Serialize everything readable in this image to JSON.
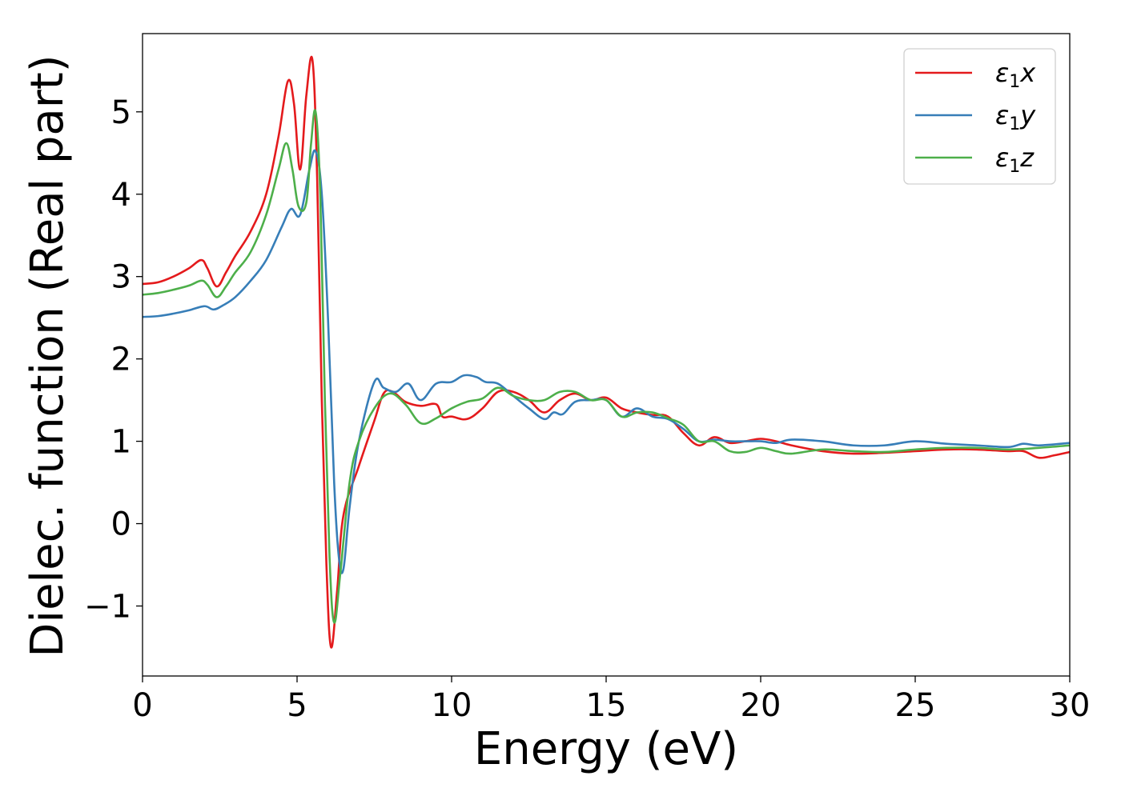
{
  "chart_data": {
    "type": "line",
    "title": "",
    "xlabel": "Energy (eV)",
    "ylabel": "Dielec. function (Real part)",
    "xlim": [
      0,
      30
    ],
    "ylim": [
      -1.85,
      5.95
    ],
    "xticks": [
      0,
      5,
      10,
      15,
      20,
      25,
      30
    ],
    "xtick_labels": [
      "0",
      "5",
      "10",
      "15",
      "20",
      "25",
      "30"
    ],
    "yticks": [
      -1,
      0,
      1,
      2,
      3,
      4,
      5
    ],
    "ytick_labels": [
      "−1",
      "0",
      "1",
      "2",
      "3",
      "4",
      "5"
    ],
    "grid": false,
    "legend_position": "top-right",
    "series": [
      {
        "name": "ε₁x",
        "legend_base": "ε",
        "legend_sub": "1",
        "legend_var": "x",
        "color": "#e41a1c",
        "x": [
          0,
          0.5,
          1.0,
          1.5,
          1.9,
          2.1,
          2.4,
          2.7,
          3.0,
          3.5,
          4.0,
          4.4,
          4.7,
          4.9,
          5.1,
          5.3,
          5.5,
          5.65,
          5.8,
          5.95,
          6.1,
          6.3,
          6.5,
          7.0,
          7.5,
          7.8,
          8.1,
          8.5,
          9.0,
          9.5,
          9.7,
          10.0,
          10.5,
          11.0,
          11.5,
          12.0,
          12.5,
          13.0,
          13.5,
          14.0,
          14.5,
          15.0,
          15.5,
          16.0,
          16.5,
          17.0,
          17.5,
          18.0,
          18.5,
          19.0,
          19.5,
          20.0,
          20.5,
          21.0,
          22.0,
          23.0,
          24.0,
          25.0,
          26.0,
          27.0,
          28.0,
          28.5,
          29.0,
          29.5,
          30.0
        ],
        "y": [
          2.91,
          2.93,
          3.0,
          3.1,
          3.2,
          3.1,
          2.88,
          3.05,
          3.25,
          3.55,
          4.0,
          4.7,
          5.37,
          5.1,
          4.3,
          5.2,
          5.62,
          4.2,
          1.5,
          -0.5,
          -1.5,
          -0.8,
          0.1,
          0.7,
          1.25,
          1.58,
          1.6,
          1.48,
          1.43,
          1.45,
          1.3,
          1.3,
          1.27,
          1.4,
          1.6,
          1.6,
          1.5,
          1.35,
          1.5,
          1.58,
          1.5,
          1.53,
          1.4,
          1.35,
          1.32,
          1.3,
          1.1,
          0.95,
          1.05,
          0.98,
          1.0,
          1.03,
          1.0,
          0.95,
          0.88,
          0.85,
          0.86,
          0.88,
          0.9,
          0.9,
          0.88,
          0.88,
          0.8,
          0.83,
          0.87
        ]
      },
      {
        "name": "ε₁y",
        "legend_base": "ε",
        "legend_sub": "1",
        "legend_var": "y",
        "color": "#377eb8",
        "x": [
          0,
          0.5,
          1.0,
          1.5,
          2.0,
          2.3,
          2.6,
          3.0,
          3.5,
          4.0,
          4.5,
          4.8,
          5.1,
          5.4,
          5.6,
          5.8,
          6.0,
          6.2,
          6.35,
          6.5,
          6.7,
          7.0,
          7.5,
          7.8,
          8.2,
          8.6,
          9.0,
          9.5,
          10.0,
          10.4,
          10.8,
          11.1,
          11.5,
          12.0,
          12.5,
          13.0,
          13.3,
          13.6,
          14.0,
          14.5,
          15.0,
          15.5,
          16.0,
          16.5,
          17.0,
          17.5,
          18.0,
          18.5,
          19.0,
          19.5,
          20.0,
          20.5,
          21.0,
          22.0,
          23.0,
          24.0,
          25.0,
          26.0,
          27.0,
          28.0,
          28.5,
          29.0,
          30.0
        ],
        "y": [
          2.51,
          2.52,
          2.55,
          2.59,
          2.64,
          2.6,
          2.65,
          2.75,
          2.95,
          3.2,
          3.6,
          3.82,
          3.75,
          4.3,
          4.52,
          4.0,
          2.5,
          0.5,
          -0.4,
          -0.55,
          0.2,
          1.0,
          1.72,
          1.65,
          1.6,
          1.7,
          1.5,
          1.7,
          1.72,
          1.8,
          1.78,
          1.72,
          1.7,
          1.55,
          1.4,
          1.27,
          1.35,
          1.33,
          1.48,
          1.5,
          1.5,
          1.3,
          1.4,
          1.3,
          1.27,
          1.15,
          1.0,
          1.02,
          1.0,
          1.0,
          1.0,
          0.98,
          1.02,
          1.0,
          0.95,
          0.95,
          1.0,
          0.97,
          0.95,
          0.93,
          0.97,
          0.95,
          0.98
        ]
      },
      {
        "name": "ε₁z",
        "legend_base": "ε",
        "legend_sub": "1",
        "legend_var": "z",
        "color": "#4daf4a",
        "x": [
          0,
          0.5,
          1.0,
          1.5,
          1.9,
          2.1,
          2.4,
          2.7,
          3.0,
          3.5,
          4.0,
          4.4,
          4.65,
          4.85,
          5.05,
          5.3,
          5.45,
          5.6,
          5.75,
          5.9,
          6.05,
          6.2,
          6.4,
          6.7,
          7.0,
          7.5,
          8.0,
          8.5,
          9.0,
          9.5,
          10.0,
          10.5,
          11.0,
          11.5,
          12.0,
          12.5,
          13.0,
          13.5,
          14.0,
          14.5,
          15.0,
          15.5,
          16.0,
          16.5,
          17.0,
          17.5,
          18.0,
          18.5,
          19.0,
          19.5,
          20.0,
          20.5,
          21.0,
          22.0,
          23.0,
          24.0,
          25.0,
          26.0,
          27.0,
          28.0,
          29.0,
          30.0
        ],
        "y": [
          2.78,
          2.8,
          2.84,
          2.89,
          2.95,
          2.9,
          2.75,
          2.88,
          3.05,
          3.3,
          3.75,
          4.3,
          4.62,
          4.3,
          3.85,
          3.9,
          4.6,
          5.0,
          4.0,
          1.5,
          -0.4,
          -1.2,
          -0.6,
          0.5,
          1.0,
          1.4,
          1.58,
          1.45,
          1.22,
          1.28,
          1.4,
          1.48,
          1.52,
          1.65,
          1.55,
          1.5,
          1.5,
          1.6,
          1.6,
          1.5,
          1.5,
          1.3,
          1.35,
          1.35,
          1.28,
          1.2,
          1.0,
          1.0,
          0.88,
          0.87,
          0.92,
          0.88,
          0.85,
          0.9,
          0.88,
          0.87,
          0.9,
          0.92,
          0.92,
          0.9,
          0.92,
          0.95
        ]
      }
    ]
  }
}
